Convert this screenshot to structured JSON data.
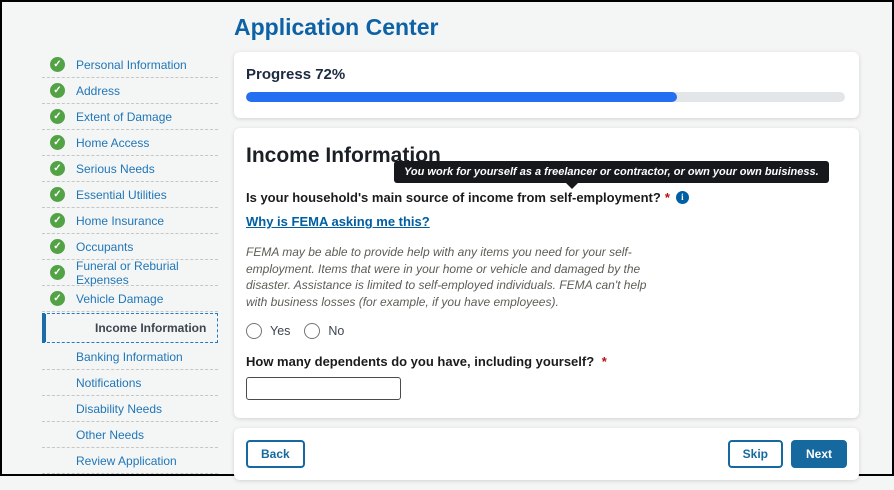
{
  "page": {
    "title": "Application Center"
  },
  "sidebar": {
    "items": [
      {
        "label": "Personal Information",
        "state": "completed"
      },
      {
        "label": "Address",
        "state": "completed"
      },
      {
        "label": "Extent of Damage",
        "state": "completed"
      },
      {
        "label": "Home Access",
        "state": "completed"
      },
      {
        "label": "Serious Needs",
        "state": "completed"
      },
      {
        "label": "Essential Utilities",
        "state": "completed"
      },
      {
        "label": "Home Insurance",
        "state": "completed"
      },
      {
        "label": "Occupants",
        "state": "completed"
      },
      {
        "label": "Funeral or Reburial Expenses",
        "state": "completed"
      },
      {
        "label": "Vehicle Damage",
        "state": "completed"
      },
      {
        "label": "Income Information",
        "state": "current"
      },
      {
        "label": "Banking Information",
        "state": "pending"
      },
      {
        "label": "Notifications",
        "state": "pending"
      },
      {
        "label": "Disability Needs",
        "state": "pending"
      },
      {
        "label": "Other Needs",
        "state": "pending"
      },
      {
        "label": "Review Application",
        "state": "pending"
      }
    ],
    "check_glyph": "✓"
  },
  "progress": {
    "label": "Progress 72%",
    "percent": 72
  },
  "form": {
    "heading": "Income Information",
    "tooltip_text": "You work for yourself as a freelancer or contractor, or own your own buisiness.",
    "question1": "Is your household's main source of income from self-employment?",
    "required_marker": "*",
    "info_glyph": "i",
    "help_link": "Why is FEMA asking me this?",
    "help_text": "FEMA may be able to provide help with any items you need for your self-employment. Items that were in your home or vehicle and damaged by the disaster. Assistance is limited to self-employed individuals. FEMA can't help with business losses (for example, if you have employees).",
    "radio_options": [
      "Yes",
      "No"
    ],
    "question2": "How many dependents do you have, including yourself?",
    "dependents_value": "",
    "dependents_placeholder": ""
  },
  "buttons": {
    "back": "Back",
    "skip": "Skip",
    "next": "Next"
  },
  "colors": {
    "accent_blue": "#005ea2",
    "progress_fill": "#246ef2",
    "check_green": "#53a346",
    "button_blue": "#15699e",
    "required_red": "#b90e0e",
    "tooltip_bg": "#16181b"
  }
}
